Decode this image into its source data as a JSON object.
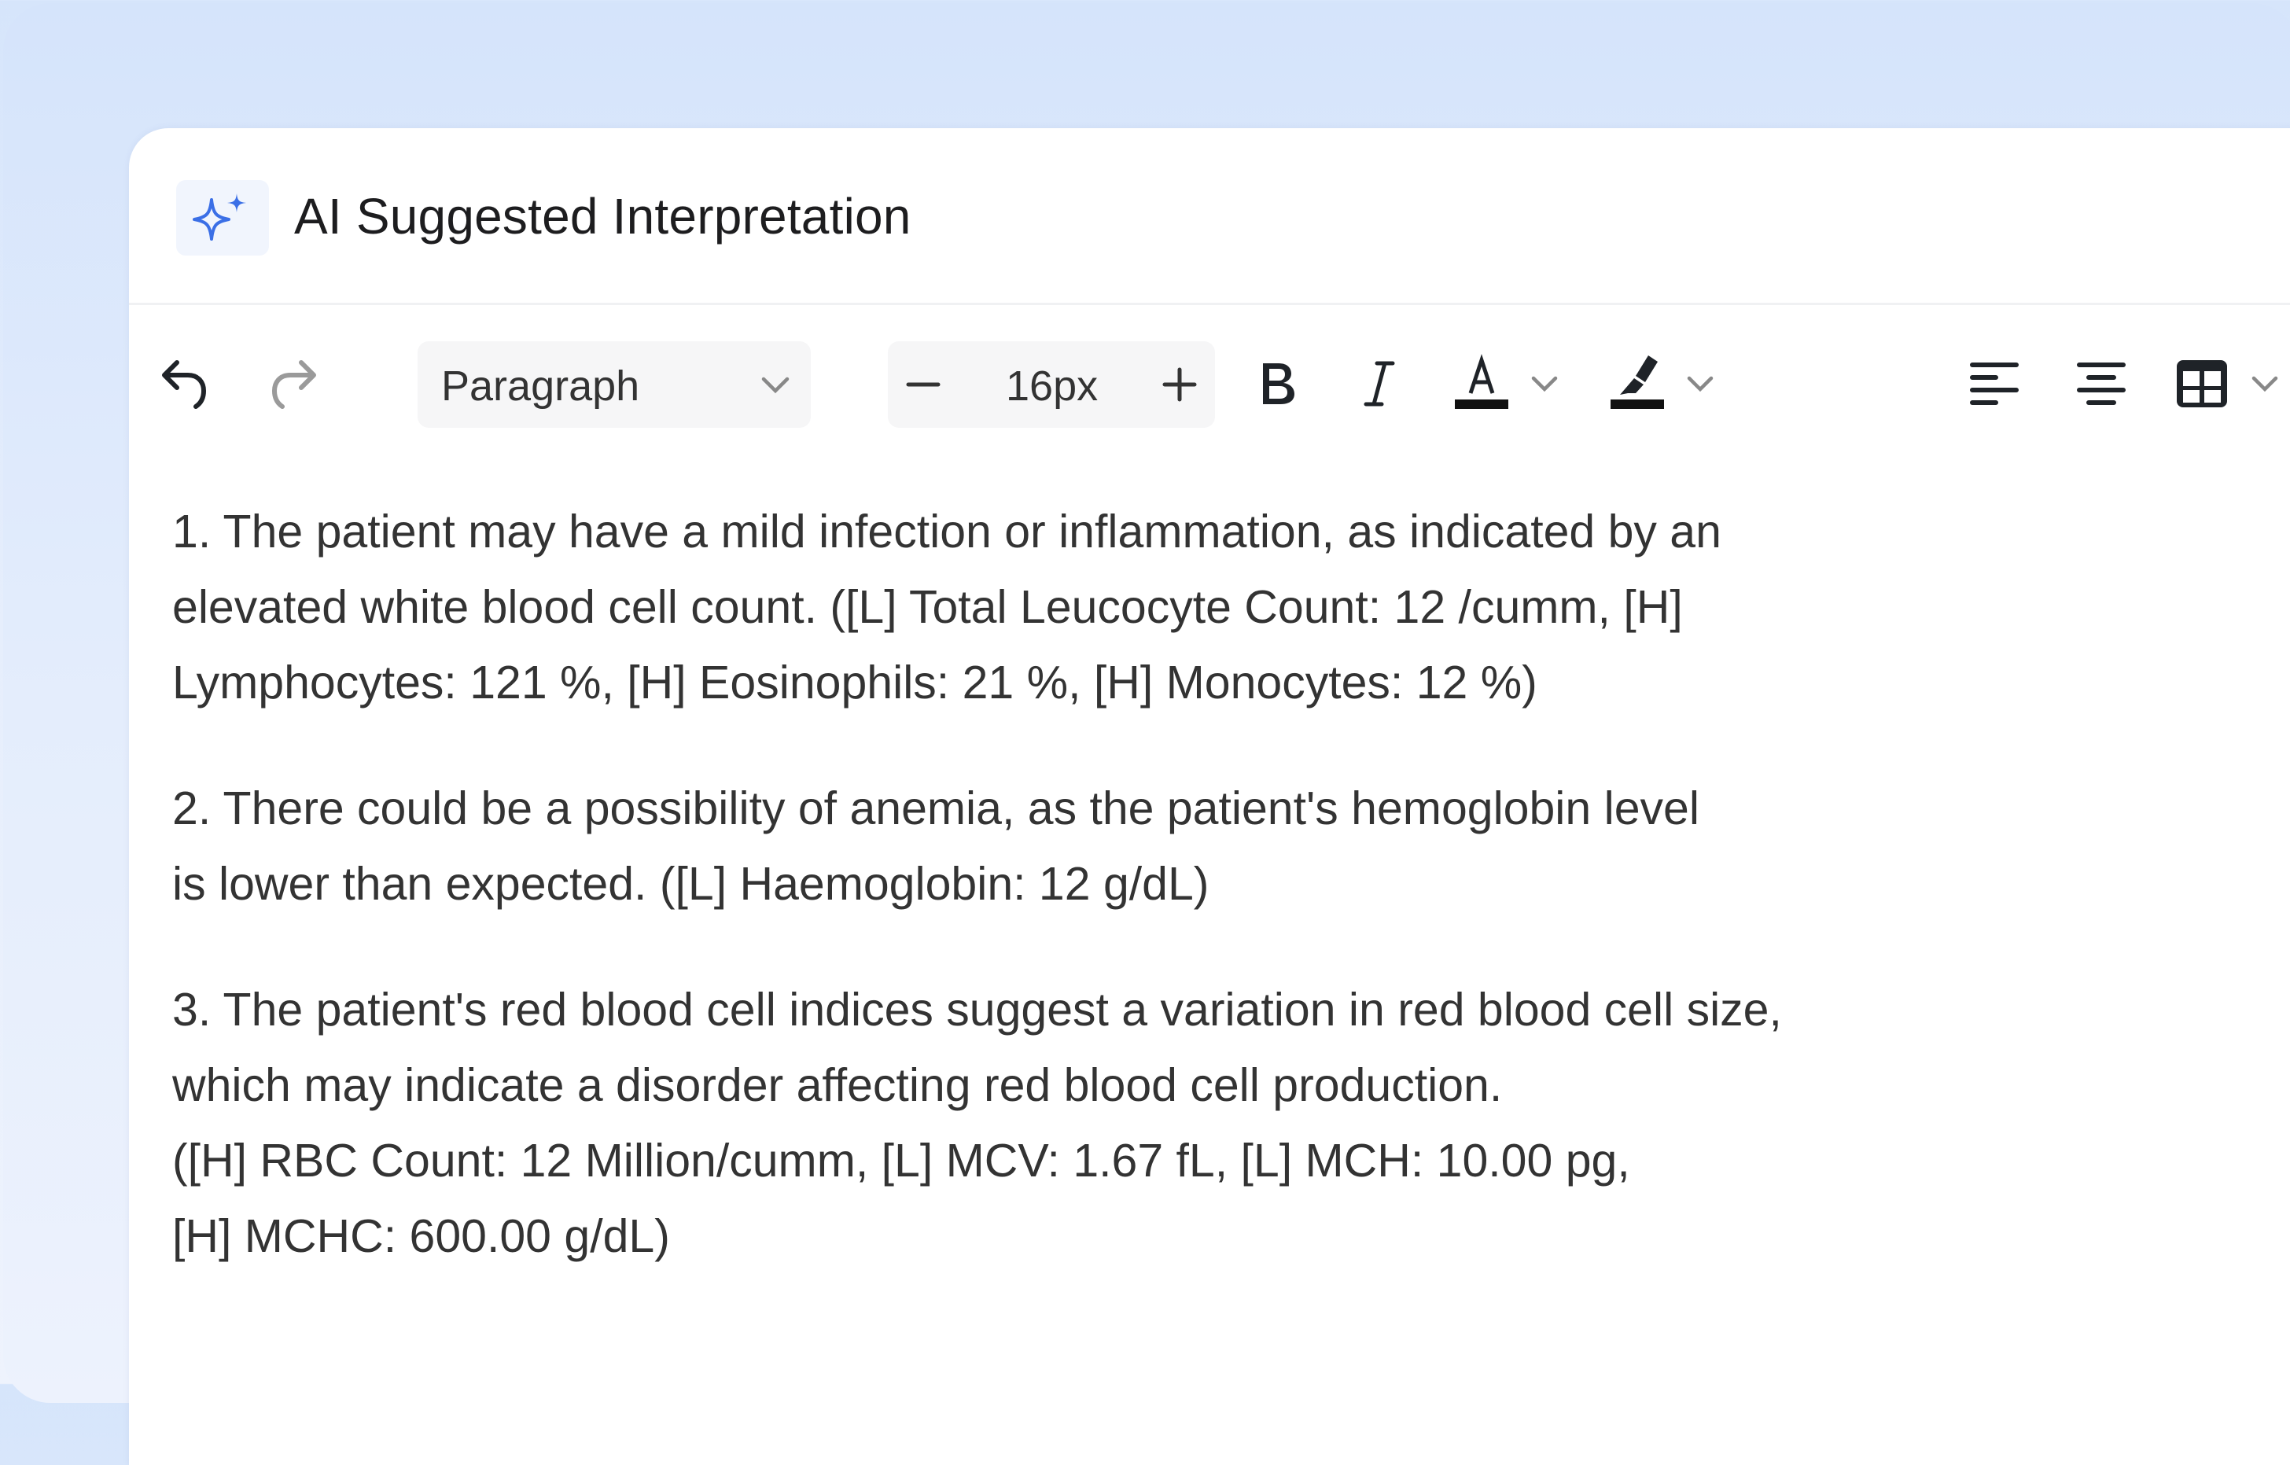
{
  "header": {
    "title": "AI Suggested Interpretation",
    "icon": "sparkle-icon",
    "accent": "#3b6fe6"
  },
  "toolbar": {
    "block_format": "Paragraph",
    "font_size": "16px",
    "buttons": [
      "undo",
      "redo",
      "decrease-font-size",
      "increase-font-size",
      "bold",
      "italic",
      "text-color",
      "highlight",
      "align-left",
      "align-center",
      "table",
      "insert-image"
    ]
  },
  "content": {
    "paragraphs": [
      [
        "1. The patient may have a mild infection or inflammation, as indicated by an",
        "elevated white blood cell count. ([L] Total Leucocyte Count: 12 /cumm, [H]",
        "Lymphocytes: 121 %, [H] Eosinophils: 21 %, [H] Monocytes: 12 %)"
      ],
      [
        "2. There could be a possibility of anemia, as the patient's hemoglobin level",
        "is lower than expected. ([L] Haemoglobin: 12 g/dL)"
      ],
      [
        "3. The patient's red blood cell indices suggest a variation in red blood cell size,",
        "which may indicate a disorder affecting red blood cell production.",
        "([H] RBC Count: 12 Million/cumm, [L] MCV: 1.67 fL, [L] MCH: 10.00 pg,",
        "[H] MCHC: 600.00 g/dL)"
      ]
    ]
  }
}
